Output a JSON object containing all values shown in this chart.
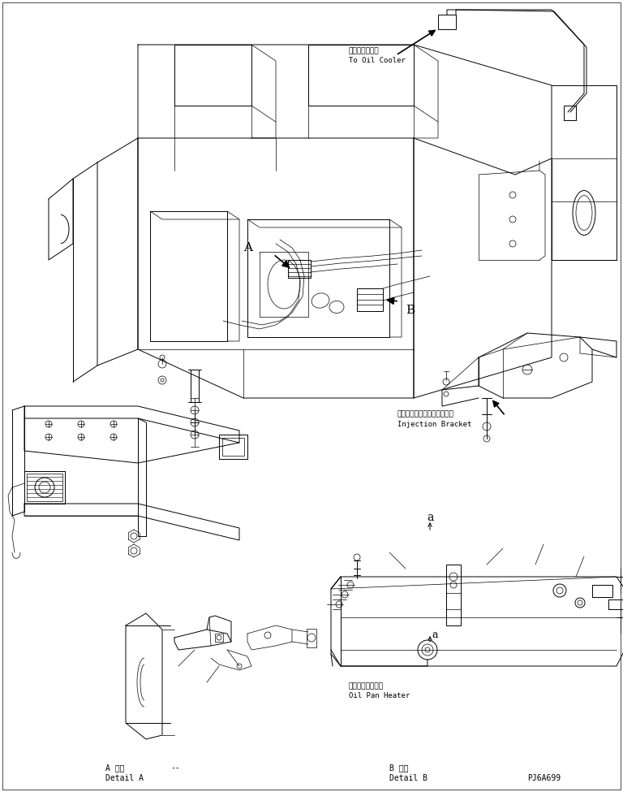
{
  "background_color": "#ffffff",
  "line_color": "#000000",
  "labels": {
    "oil_cooler_jp": "オイルクーラヘ",
    "oil_cooler_en": "To Oil Cooler",
    "injection_bracket_jp": "インジェクションブラケット",
    "injection_bracket_en": "Injection Bracket",
    "oil_pan_heater_jp": "オイルパンヒータ",
    "oil_pan_heater_en": "Oil Pan Heater",
    "detail_a_jp": "A 詳細",
    "detail_a_sep": "--",
    "detail_a_en": "Detail A",
    "detail_b_jp": "B 詳細",
    "detail_b_en": "Detail B",
    "part_number": "PJ6A699"
  }
}
